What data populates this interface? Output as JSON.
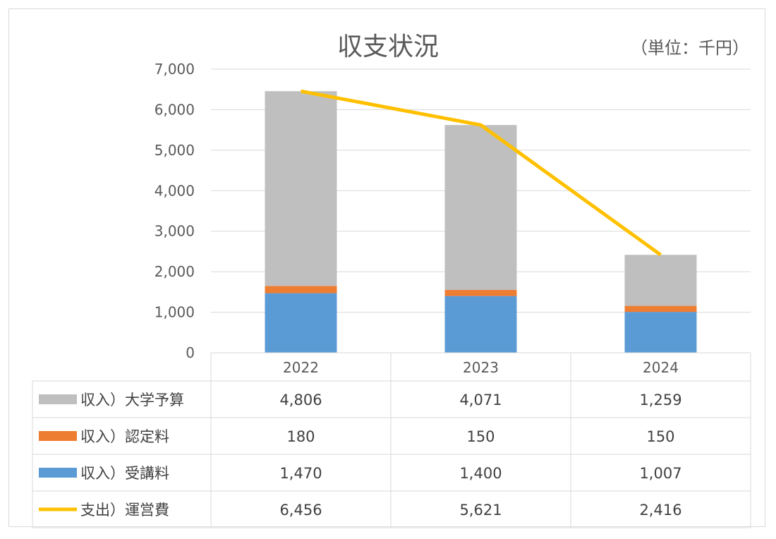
{
  "chart_data": {
    "type": "bar",
    "title": "収支状況",
    "unit_label": "（単位：千円）",
    "categories": [
      "2022",
      "2023",
      "2024"
    ],
    "y_ticks": [
      "7,000",
      "6,000",
      "5,000",
      "4,000",
      "3,000",
      "2,000",
      "1,000",
      "0"
    ],
    "ylim": [
      0,
      7000
    ],
    "grid": true,
    "legend": "data-table",
    "series": [
      {
        "name": "収入）受講料",
        "kind": "bar",
        "color": "#5b9bd5",
        "values": [
          1470,
          1400,
          1007
        ],
        "labels": [
          "1,470",
          "1,400",
          "1,007"
        ]
      },
      {
        "name": "収入）認定料",
        "kind": "bar",
        "color": "#ed7d31",
        "values": [
          180,
          150,
          150
        ],
        "labels": [
          "180",
          "150",
          "150"
        ]
      },
      {
        "name": "収入）大学予算",
        "kind": "bar",
        "color": "#bfbfbf",
        "values": [
          4806,
          4071,
          1259
        ],
        "labels": [
          "4,806",
          "4,071",
          "1,259"
        ]
      },
      {
        "name": "支出）運営費",
        "kind": "line",
        "color": "#ffc000",
        "values": [
          6456,
          5621,
          2416
        ],
        "labels": [
          "6,456",
          "5,621",
          "2,416"
        ]
      }
    ],
    "table_row_order": [
      "収入）大学予算",
      "収入）認定料",
      "収入）受講料",
      "支出）運営費"
    ]
  }
}
